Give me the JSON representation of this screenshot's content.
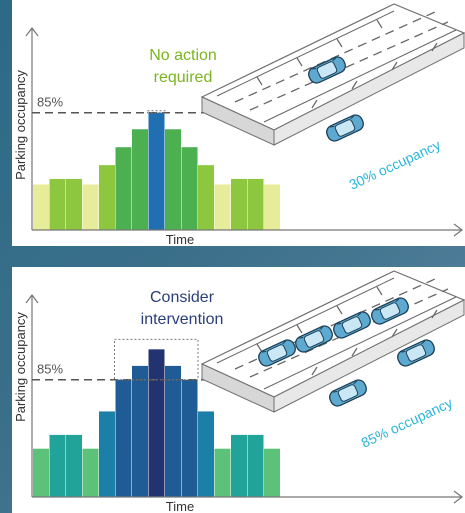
{
  "chart_data": [
    {
      "type": "bar",
      "ylabel": "Parking occupancy",
      "xlabel": "Time",
      "threshold_label": "85%",
      "threshold": 85,
      "annotation": [
        "No action",
        "required"
      ],
      "annotation_color": "#7ab51d",
      "occupancy_label": "30% occupancy",
      "occupancy_color": "#29b6d8",
      "values": [
        33,
        37,
        37,
        33,
        47,
        60,
        73,
        85,
        73,
        60,
        47,
        33,
        37,
        37,
        33
      ],
      "colors": [
        "#e6ec9a",
        "#8dc63f",
        "#8dc63f",
        "#e6ec9a",
        "#8dc63f",
        "#4caf50",
        "#4caf50",
        "#1f6fb2",
        "#4caf50",
        "#4caf50",
        "#8dc63f",
        "#e6ec9a",
        "#8dc63f",
        "#8dc63f",
        "#e6ec9a"
      ]
    },
    {
      "type": "bar",
      "ylabel": "Parking occupancy",
      "xlabel": "Time",
      "threshold_label": "85%",
      "threshold": 85,
      "annotation": [
        "Consider",
        "intervention"
      ],
      "annotation_color": "#2a3f7a",
      "occupancy_label": "85% occupancy",
      "occupancy_color": "#29b6d8",
      "values": [
        35,
        45,
        45,
        35,
        62,
        85,
        95,
        107,
        95,
        85,
        62,
        35,
        45,
        45,
        35
      ],
      "colors": [
        "#5cc27a",
        "#22a39a",
        "#22a39a",
        "#5cc27a",
        "#1c7fa8",
        "#1f5b95",
        "#1f5b95",
        "#23336f",
        "#1f5b95",
        "#1f5b95",
        "#1c7fa8",
        "#5cc27a",
        "#22a39a",
        "#22a39a",
        "#5cc27a"
      ]
    }
  ]
}
